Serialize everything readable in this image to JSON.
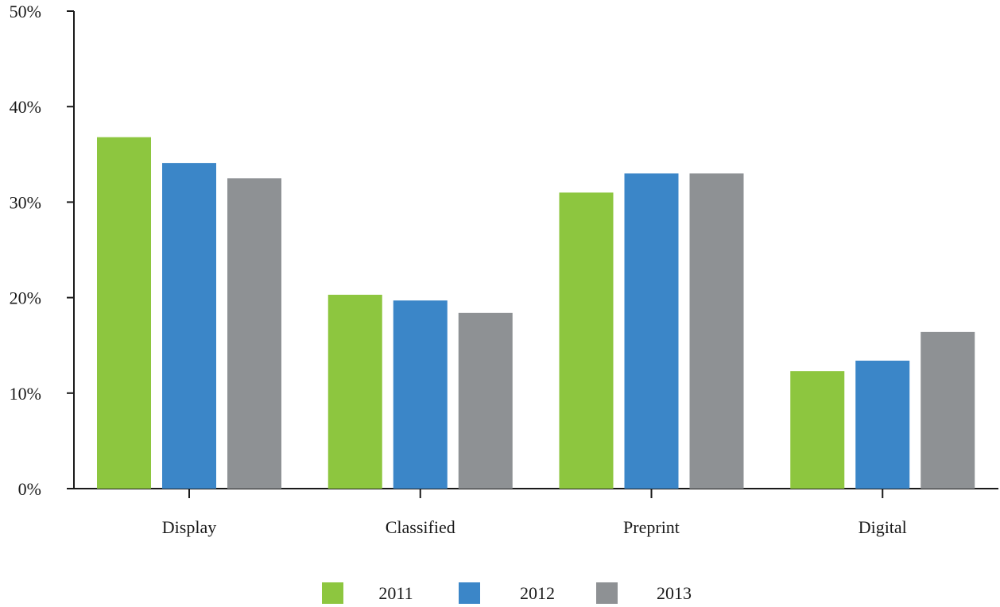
{
  "chart_data": {
    "type": "bar",
    "title": "",
    "xlabel": "",
    "ylabel": "",
    "categories": [
      "Display",
      "Classified",
      "Preprint",
      "Digital"
    ],
    "series": [
      {
        "name": "2011",
        "color": "#8dc63f",
        "values": [
          36.8,
          20.3,
          31.0,
          12.3
        ]
      },
      {
        "name": "2012",
        "color": "#3b86c8",
        "values": [
          34.1,
          19.7,
          33.0,
          13.4
        ]
      },
      {
        "name": "2013",
        "color": "#8e9194",
        "values": [
          32.5,
          18.4,
          33.0,
          16.4
        ]
      }
    ],
    "ylim": [
      0,
      50
    ],
    "yticks": [
      0,
      10,
      20,
      30,
      40,
      50
    ],
    "ytick_labels": [
      "0%",
      "10%",
      "20%",
      "30%",
      "40%",
      "50%"
    ],
    "grid": false,
    "legend_position": "bottom-center"
  }
}
